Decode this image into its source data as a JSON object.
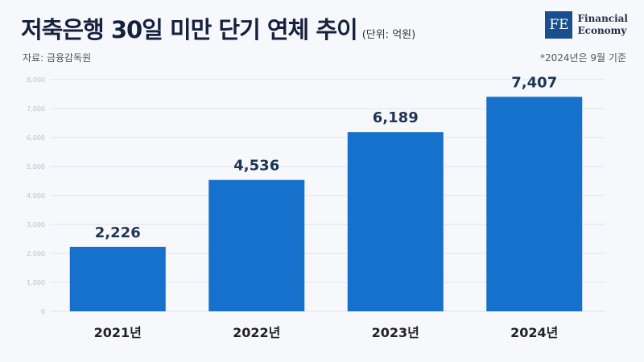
{
  "header": {
    "title": "저축은행 30일 미만 단기 연체 추이",
    "unit": "(단위: 억원)",
    "source": "자료: 금융감독원",
    "note": "*2024년은 9월 기준"
  },
  "logo": {
    "mark": "FE",
    "line1": "Financial",
    "line2": "Economy"
  },
  "colors": {
    "bar": "#1571cc",
    "value_label": "#1e3553",
    "category_label": "#222222",
    "grid": "#dde3ec",
    "tick": "#b8c0cc"
  },
  "chart_data": {
    "type": "bar",
    "title": "저축은행 30일 미만 단기 연체 추이",
    "categories": [
      "2021년",
      "2022년",
      "2023년",
      "2024년"
    ],
    "values": [
      2226,
      4536,
      6189,
      7407
    ],
    "value_labels": [
      "2,226",
      "4,536",
      "6,189",
      "7,407"
    ],
    "ylim": [
      0,
      8000
    ],
    "yticks": [
      0,
      1000,
      2000,
      3000,
      4000,
      5000,
      6000,
      7000,
      8000
    ],
    "ytick_labels": [
      "0",
      "1,000",
      "2,000",
      "3,000",
      "4,000",
      "5,000",
      "6,000",
      "7,000",
      "8,000"
    ],
    "grid": true
  }
}
